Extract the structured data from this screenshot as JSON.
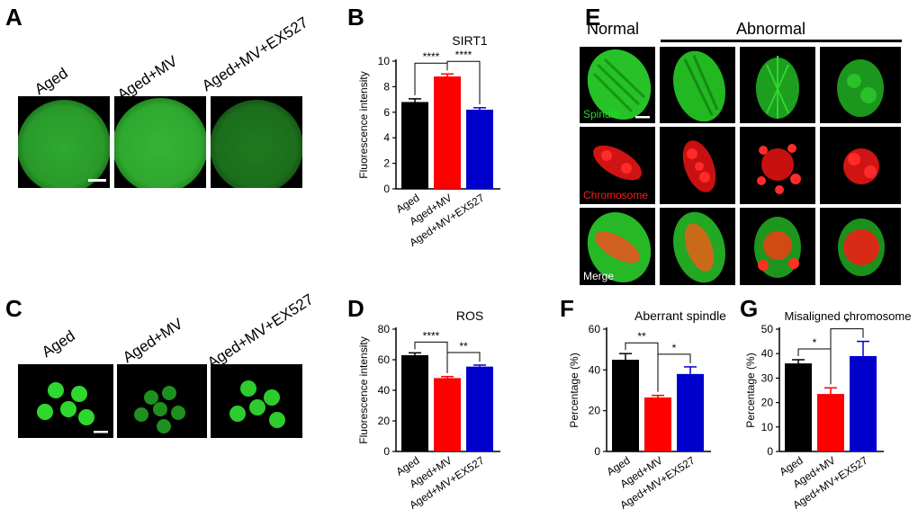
{
  "panels": {
    "A": {
      "letter": "A",
      "groups": [
        "Aged",
        "Aged+MV",
        "Aged+MV+EX527"
      ]
    },
    "B": {
      "letter": "B"
    },
    "C": {
      "letter": "C",
      "groups": [
        "Aged",
        "Aged+MV",
        "Aged+MV+EX527"
      ]
    },
    "D": {
      "letter": "D"
    },
    "E": {
      "letter": "E",
      "normal_label": "Normal",
      "abnormal_label": "Abnormal",
      "row_labels": [
        "Spindle",
        "Chromosome",
        "Merge"
      ]
    },
    "F": {
      "letter": "F"
    },
    "G": {
      "letter": "G"
    }
  },
  "colors": {
    "aged": "#000000",
    "aged_mv": "#ff0000",
    "aged_mv_ex527": "#0000cc",
    "spindle_green": "#22dd22",
    "chromosome_red": "#ff1a1a"
  },
  "chart_data": [
    {
      "id": "B",
      "type": "bar",
      "title": "SIRT1",
      "ylabel": "Fluorescence intensity",
      "categories": [
        "Aged",
        "Aged+MV",
        "Aged+MV+EX527"
      ],
      "values": [
        6.8,
        8.8,
        6.2
      ],
      "errors": [
        0.25,
        0.2,
        0.15
      ],
      "ylim": [
        0,
        10
      ],
      "yticks": [
        "0",
        "2",
        "4",
        "6",
        "8",
        "10"
      ],
      "significance": [
        {
          "from": 0,
          "to": 1,
          "label": "****"
        },
        {
          "from": 1,
          "to": 2,
          "label": "****"
        }
      ]
    },
    {
      "id": "D",
      "type": "bar",
      "title": "ROS",
      "ylabel": "Fluorescence intensity",
      "categories": [
        "Aged",
        "Aged+MV",
        "Aged+MV+EX527"
      ],
      "values": [
        63,
        48,
        55.5
      ],
      "errors": [
        1.5,
        1,
        1
      ],
      "ylim": [
        0,
        80
      ],
      "yticks": [
        "0",
        "20",
        "40",
        "60",
        "80"
      ],
      "significance": [
        {
          "from": 0,
          "to": 1,
          "label": "****"
        },
        {
          "from": 1,
          "to": 2,
          "label": "**"
        }
      ]
    },
    {
      "id": "F",
      "type": "bar",
      "title": "Aberrant spindle",
      "ylabel": "Percentage (%)",
      "categories": [
        "Aged",
        "Aged+MV",
        "Aged+MV+EX527"
      ],
      "values": [
        45,
        26.5,
        38
      ],
      "errors": [
        3,
        1,
        3.5
      ],
      "ylim": [
        0,
        60
      ],
      "yticks": [
        "0",
        "20",
        "40",
        "60"
      ],
      "significance": [
        {
          "from": 0,
          "to": 1,
          "label": "**"
        },
        {
          "from": 1,
          "to": 2,
          "label": "*"
        }
      ]
    },
    {
      "id": "G",
      "type": "bar",
      "title": "Misaligned chromosome",
      "ylabel": "Percentage (%)",
      "categories": [
        "Aged",
        "Aged+MV",
        "Aged+MV+EX527"
      ],
      "values": [
        36,
        23.5,
        39
      ],
      "errors": [
        1.5,
        2.5,
        6
      ],
      "ylim": [
        0,
        50
      ],
      "yticks": [
        "0",
        "10",
        "20",
        "30",
        "40",
        "50"
      ],
      "significance": [
        {
          "from": 0,
          "to": 1,
          "label": "*"
        },
        {
          "from": 1,
          "to": 2,
          "label": "*"
        }
      ]
    }
  ]
}
